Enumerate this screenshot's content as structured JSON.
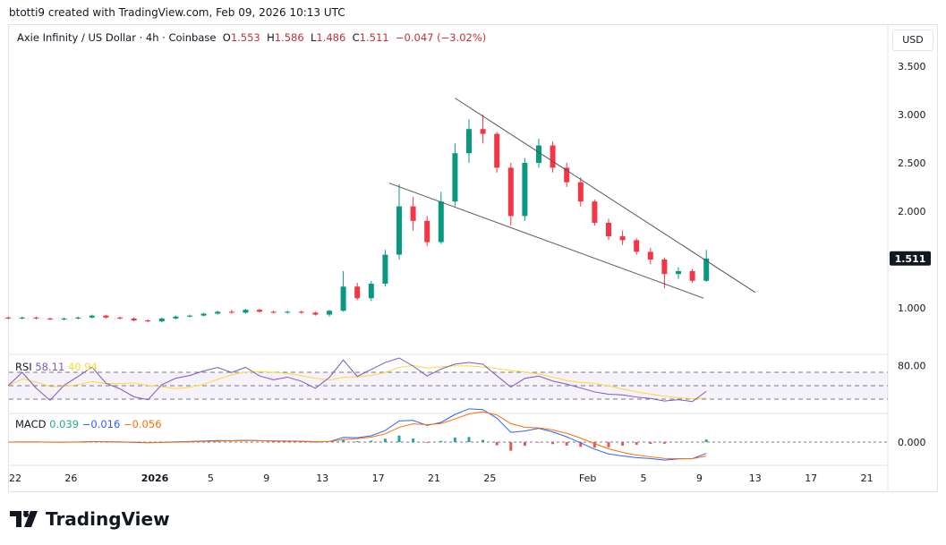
{
  "credit": "btotti9 created with TradingView.com, Feb 09, 2026 10:13 UTC",
  "legend": {
    "symbol": "Axie Infinity / US Dollar · 4h · Coinbase",
    "o_label": "O",
    "o": "1.553",
    "h_label": "H",
    "h": "1.586",
    "l_label": "L",
    "l": "1.486",
    "c_label": "C",
    "c": "1.511",
    "change": "−0.047 (−3.02%)"
  },
  "currency": "USD",
  "rsi": {
    "label": "RSI",
    "value": "58.11",
    "ma": "40.94",
    "axis_label": "80.00"
  },
  "macd": {
    "label": "MACD",
    "hist": "0.039",
    "macd": "−0.016",
    "signal": "−0.056",
    "axis_label": "0.000"
  },
  "logo_text": "TradingView",
  "colors": {
    "up": "#089981",
    "down": "#f23645",
    "rsi": "#7e57c2",
    "rsi_ma": "#fdd835",
    "macd": "#2962ff",
    "signal": "#ff6d00"
  },
  "chart_data": {
    "type": "candlestick",
    "price_ticks": [
      "3.500",
      "3.000",
      "2.500",
      "2.000",
      "1.000"
    ],
    "price_tick_values": [
      3.5,
      3.0,
      2.5,
      2.0,
      1.0
    ],
    "last_price": "1.511",
    "last_price_value": 1.511,
    "x_ticks": [
      "22",
      "26",
      "2026",
      "5",
      "9",
      "13",
      "17",
      "21",
      "25",
      "Feb",
      "5",
      "9",
      "13",
      "17",
      "21"
    ],
    "x_tick_dates": [
      "2025-12-22",
      "2025-12-26",
      "2026-01-01",
      "2026-01-05",
      "2026-01-09",
      "2026-01-13",
      "2026-01-17",
      "2026-01-21",
      "2026-01-25",
      "2026-02-01",
      "2026-02-05",
      "2026-02-09",
      "2026-02-13",
      "2026-02-17",
      "2026-02-21"
    ],
    "candles": [
      [
        "2025-12-21",
        0.9,
        0.91,
        0.88,
        0.89
      ],
      [
        "2025-12-22",
        0.89,
        0.91,
        0.88,
        0.9
      ],
      [
        "2025-12-23",
        0.9,
        0.91,
        0.88,
        0.89
      ],
      [
        "2025-12-24",
        0.89,
        0.9,
        0.87,
        0.88
      ],
      [
        "2025-12-25",
        0.88,
        0.9,
        0.87,
        0.89
      ],
      [
        "2025-12-26",
        0.89,
        0.91,
        0.88,
        0.9
      ],
      [
        "2025-12-27",
        0.9,
        0.93,
        0.89,
        0.92
      ],
      [
        "2025-12-28",
        0.92,
        0.93,
        0.89,
        0.9
      ],
      [
        "2025-12-29",
        0.9,
        0.91,
        0.88,
        0.89
      ],
      [
        "2025-12-30",
        0.89,
        0.9,
        0.86,
        0.87
      ],
      [
        "2025-12-31",
        0.87,
        0.88,
        0.85,
        0.86
      ],
      [
        "2026-01-01",
        0.86,
        0.9,
        0.85,
        0.89
      ],
      [
        "2026-01-02",
        0.89,
        0.92,
        0.88,
        0.91
      ],
      [
        "2026-01-03",
        0.91,
        0.93,
        0.9,
        0.92
      ],
      [
        "2026-01-04",
        0.92,
        0.95,
        0.91,
        0.94
      ],
      [
        "2026-01-05",
        0.94,
        0.97,
        0.93,
        0.96
      ],
      [
        "2026-01-06",
        0.96,
        0.98,
        0.94,
        0.95
      ],
      [
        "2026-01-07",
        0.95,
        0.99,
        0.94,
        0.98
      ],
      [
        "2026-01-08",
        0.98,
        0.99,
        0.95,
        0.96
      ],
      [
        "2026-01-09",
        0.96,
        0.97,
        0.94,
        0.95
      ],
      [
        "2026-01-10",
        0.95,
        0.97,
        0.94,
        0.96
      ],
      [
        "2026-01-11",
        0.96,
        0.97,
        0.94,
        0.95
      ],
      [
        "2026-01-12",
        0.95,
        0.96,
        0.92,
        0.93
      ],
      [
        "2026-01-13",
        0.93,
        0.98,
        0.91,
        0.97
      ],
      [
        "2026-01-14",
        0.97,
        1.38,
        0.96,
        1.22
      ],
      [
        "2026-01-15",
        1.22,
        1.26,
        1.08,
        1.1
      ],
      [
        "2026-01-16",
        1.1,
        1.28,
        1.07,
        1.25
      ],
      [
        "2026-01-17",
        1.25,
        1.6,
        1.22,
        1.55
      ],
      [
        "2026-01-18",
        1.55,
        2.28,
        1.5,
        2.05
      ],
      [
        "2026-01-19",
        2.05,
        2.15,
        1.8,
        1.9
      ],
      [
        "2026-01-20",
        1.9,
        1.95,
        1.64,
        1.68
      ],
      [
        "2026-01-21",
        1.68,
        2.2,
        1.66,
        2.1
      ],
      [
        "2026-01-22",
        2.1,
        2.7,
        2.05,
        2.6
      ],
      [
        "2026-01-23",
        2.6,
        2.95,
        2.5,
        2.85
      ],
      [
        "2026-01-24",
        2.85,
        3.0,
        2.7,
        2.8
      ],
      [
        "2026-01-25",
        2.8,
        2.82,
        2.4,
        2.45
      ],
      [
        "2026-01-26",
        2.45,
        2.5,
        1.85,
        1.95
      ],
      [
        "2026-01-27",
        1.95,
        2.55,
        1.9,
        2.5
      ],
      [
        "2026-01-28",
        2.5,
        2.75,
        2.45,
        2.68
      ],
      [
        "2026-01-29",
        2.68,
        2.72,
        2.4,
        2.45
      ],
      [
        "2026-01-30",
        2.45,
        2.5,
        2.25,
        2.3
      ],
      [
        "2026-01-31",
        2.3,
        2.35,
        2.05,
        2.1
      ],
      [
        "2026-02-01",
        2.1,
        2.12,
        1.85,
        1.88
      ],
      [
        "2026-02-02",
        1.88,
        1.92,
        1.7,
        1.74
      ],
      [
        "2026-02-03",
        1.74,
        1.8,
        1.65,
        1.7
      ],
      [
        "2026-02-04",
        1.7,
        1.72,
        1.55,
        1.58
      ],
      [
        "2026-02-05",
        1.58,
        1.62,
        1.45,
        1.5
      ],
      [
        "2026-02-06",
        1.5,
        1.52,
        1.2,
        1.35
      ],
      [
        "2026-02-07",
        1.35,
        1.42,
        1.3,
        1.38
      ],
      [
        "2026-02-08",
        1.38,
        1.4,
        1.26,
        1.28
      ],
      [
        "2026-02-09",
        1.28,
        1.6,
        1.27,
        1.511
      ]
    ],
    "trendlines": [
      {
        "from": [
          "2026-01-22.5",
          3.17
        ],
        "to": [
          "2026-02-13",
          1.16
        ]
      },
      {
        "from": [
          "2026-01-17.8",
          2.29
        ],
        "to": [
          "2026-02-09.3",
          1.1
        ]
      }
    ],
    "rsi_levels": [
      70,
      50,
      30
    ]
  }
}
